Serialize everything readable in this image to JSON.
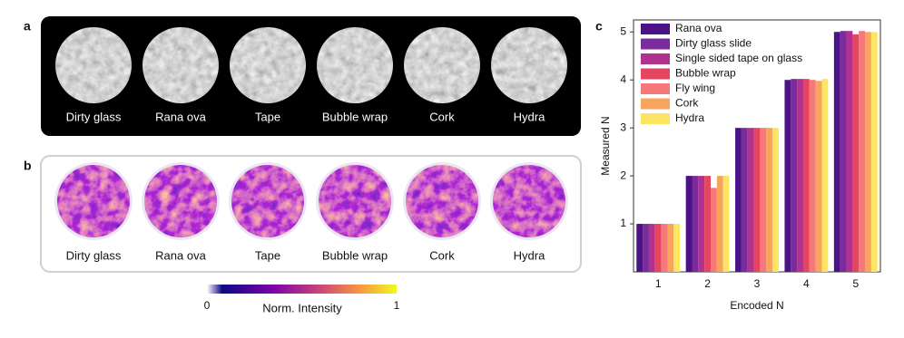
{
  "panel_a": {
    "label": "a",
    "captions": [
      "Dirty glass",
      "Rana ova",
      "Tape",
      "Bubble wrap",
      "Cork",
      "Hydra"
    ]
  },
  "panel_b": {
    "label": "b",
    "captions": [
      "Dirty glass",
      "Rana ova",
      "Tape",
      "Bubble wrap",
      "Cork",
      "Hydra"
    ],
    "colorbar": {
      "min_label": "0",
      "max_label": "1",
      "title": "Norm. Intensity"
    }
  },
  "panel_c": {
    "label": "c"
  },
  "chart_data": {
    "type": "bar",
    "xlabel": "Encoded N",
    "ylabel": "Measured N",
    "categories": [
      "1",
      "2",
      "3",
      "4",
      "5"
    ],
    "ylim": [
      0,
      5.25
    ],
    "yticks": [
      1,
      2,
      3,
      4,
      5
    ],
    "grid": false,
    "legend": "upper left",
    "series": [
      {
        "name": "Rana ova",
        "color": "#4b1387",
        "values": [
          1,
          2,
          3,
          4.0,
          5.0
        ]
      },
      {
        "name": "Dirty glass slide",
        "color": "#7a2b9c",
        "values": [
          1,
          2,
          3,
          4.02,
          5.02
        ]
      },
      {
        "name": "Single sided tape on glass",
        "color": "#b2318f",
        "values": [
          1,
          2,
          3,
          4.02,
          5.02
        ]
      },
      {
        "name": "Bubble wrap",
        "color": "#e6455f",
        "values": [
          1,
          2,
          3,
          4.02,
          4.95
        ]
      },
      {
        "name": "Fly wing",
        "color": "#f7787a",
        "values": [
          1,
          1.75,
          3,
          4.0,
          5.02
        ]
      },
      {
        "name": "Cork",
        "color": "#f8a45c",
        "values": [
          1,
          2,
          3,
          3.98,
          5.0
        ]
      },
      {
        "name": "Hydra",
        "color": "#fde462",
        "values": [
          1,
          2,
          3,
          4.02,
          5.0
        ]
      }
    ]
  }
}
